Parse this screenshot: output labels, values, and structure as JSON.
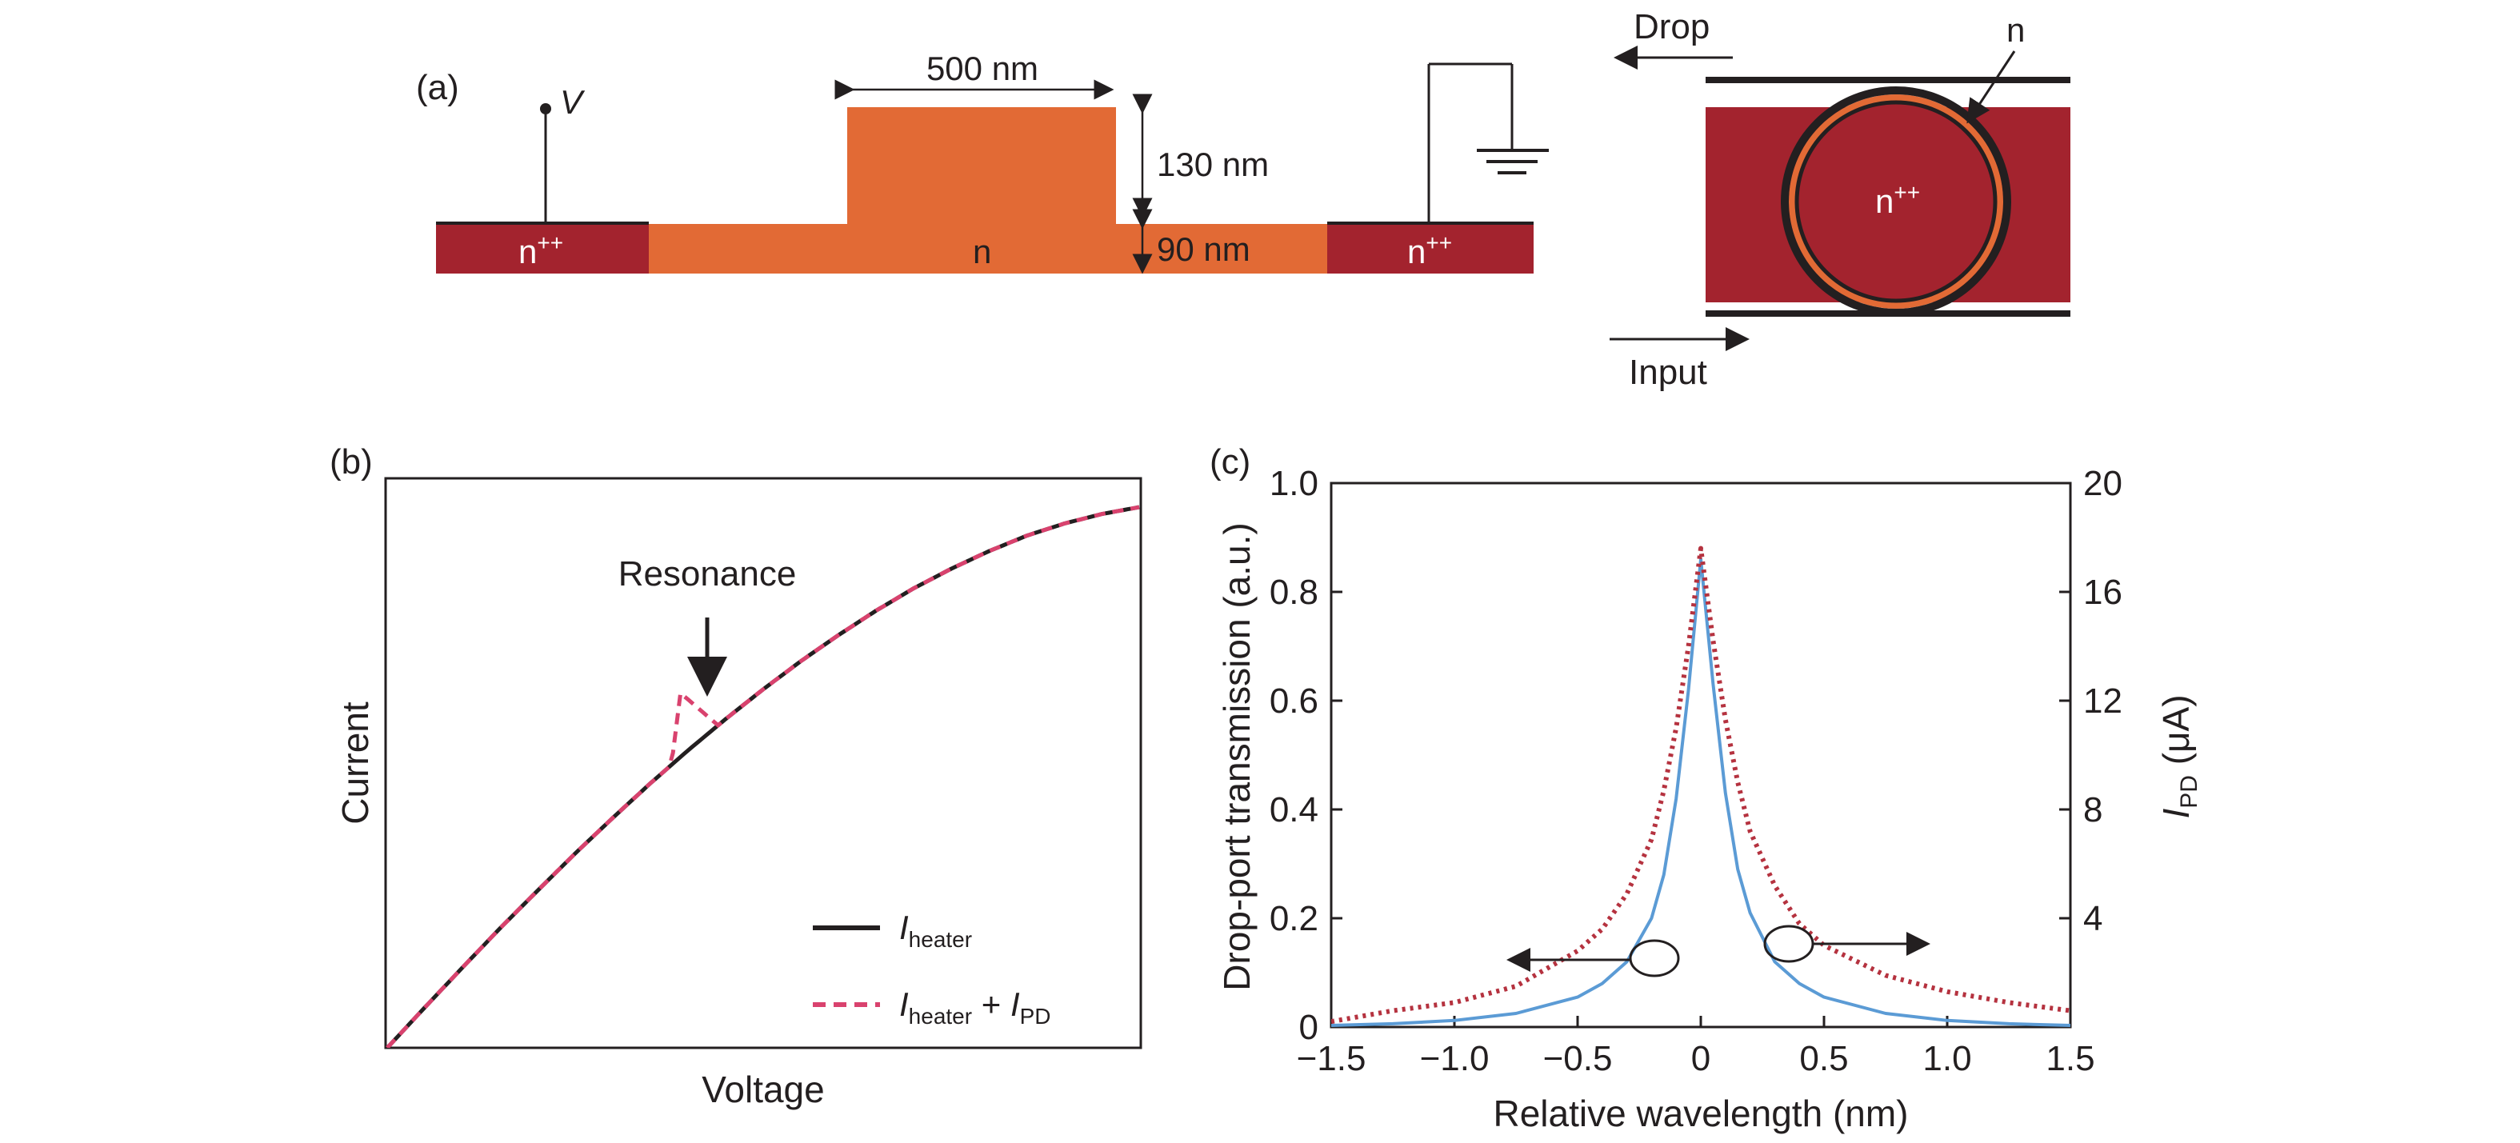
{
  "panel_a": {
    "label": "(a)",
    "v_label": "V",
    "n_pp_left": "n",
    "n_pp_sup": "++",
    "n_center": "n",
    "width_label": "500 nm",
    "rib_height_label": "130 nm",
    "slab_height_label": "90 nm",
    "n_pp_right": "n",
    "ring": {
      "drop_label": "Drop",
      "input_label": "Input",
      "n_label": "n",
      "center_label": "n",
      "center_sup": "++"
    },
    "colors": {
      "n_doped": "#e26a35",
      "n_pp_doped": "#a3232e"
    }
  },
  "panel_b": {
    "label": "(b)",
    "xlabel": "Voltage",
    "ylabel": "Current",
    "annotation": "Resonance",
    "legend": [
      {
        "symbol": "I",
        "sub": "heater",
        "extra": ""
      },
      {
        "symbol": "I",
        "sub": "heater",
        "extra": " + ",
        "symbol2": "I",
        "sub2": "PD"
      }
    ]
  },
  "chart_data": [
    {
      "type": "line",
      "panel": "(b)",
      "xlabel": "Voltage",
      "ylabel": "Current",
      "x": [
        0,
        0.05,
        0.1,
        0.15,
        0.2,
        0.25,
        0.3,
        0.35,
        0.4,
        0.45,
        0.5,
        0.55,
        0.6,
        0.65,
        0.7,
        0.75,
        0.8,
        0.85,
        0.9,
        0.95,
        1.0
      ],
      "series": [
        {
          "name": "I_heater",
          "color": "#231f20",
          "values": [
            0,
            0.076,
            0.151,
            0.225,
            0.296,
            0.366,
            0.433,
            0.498,
            0.56,
            0.619,
            0.675,
            0.728,
            0.777,
            0.823,
            0.865,
            0.902,
            0.935,
            0.964,
            0.987,
            1.005,
            1.018
          ]
        },
        {
          "name": "I_heater + I_PD",
          "color": "#d9426e",
          "values": [
            0,
            0.076,
            0.151,
            0.225,
            0.296,
            0.366,
            0.433,
            0.498,
            0.56,
            0.619,
            0.675,
            0.728,
            0.777,
            0.823,
            0.865,
            0.902,
            0.935,
            0.964,
            0.987,
            1.005,
            1.018
          ],
          "peak": {
            "x": 0.39,
            "height": 0.12
          }
        }
      ]
    },
    {
      "type": "line",
      "panel": "(c)",
      "xlabel": "Relative wavelength (nm)",
      "ylabel": "Drop-port transmission (a.u.)",
      "y2label": "I_PD (μA)",
      "xlim": [
        -1.5,
        1.5
      ],
      "ylim": [
        0,
        1.0
      ],
      "y2lim": [
        0,
        20
      ],
      "xticks": [
        "−1.5",
        "−1.0",
        "−0.5",
        "0",
        "0.5",
        "1.0",
        "1.5"
      ],
      "yticks": [
        "0",
        "0.2",
        "0.4",
        "0.6",
        "0.8",
        "1.0"
      ],
      "y2ticks": [
        "4",
        "8",
        "12",
        "16",
        "20"
      ],
      "x": [
        -1.5,
        -1.25,
        -1.0,
        -0.75,
        -0.5,
        -0.4,
        -0.3,
        -0.2,
        -0.15,
        -0.1,
        -0.05,
        0,
        0.05,
        0.1,
        0.15,
        0.2,
        0.3,
        0.4,
        0.5,
        0.75,
        1.0,
        1.25,
        1.5
      ],
      "series": [
        {
          "name": "Drop-port transmission",
          "axis": "left",
          "color": "#5b9bd5",
          "values": [
            0.003,
            0.006,
            0.012,
            0.025,
            0.055,
            0.08,
            0.12,
            0.2,
            0.28,
            0.42,
            0.62,
            0.86,
            0.63,
            0.43,
            0.29,
            0.21,
            0.12,
            0.08,
            0.055,
            0.025,
            0.012,
            0.006,
            0.003
          ]
        },
        {
          "name": "I_PD",
          "axis": "right",
          "color": "#b5323f",
          "values": [
            0.2,
            0.6,
            0.9,
            1.5,
            2.8,
            3.6,
            4.9,
            6.9,
            8.7,
            11.0,
            14.0,
            17.6,
            14.2,
            11.3,
            9.0,
            7.2,
            5.2,
            3.8,
            3.0,
            1.9,
            1.3,
            0.9,
            0.6
          ]
        }
      ]
    }
  ],
  "panel_c": {
    "label": "(c)",
    "xlabel": "Relative wavelength (nm)",
    "ylabel": "Drop-port transmission (a.u.)",
    "y2label_sym": "I",
    "y2label_sub": "PD",
    "y2label_unit": " (μA)"
  }
}
